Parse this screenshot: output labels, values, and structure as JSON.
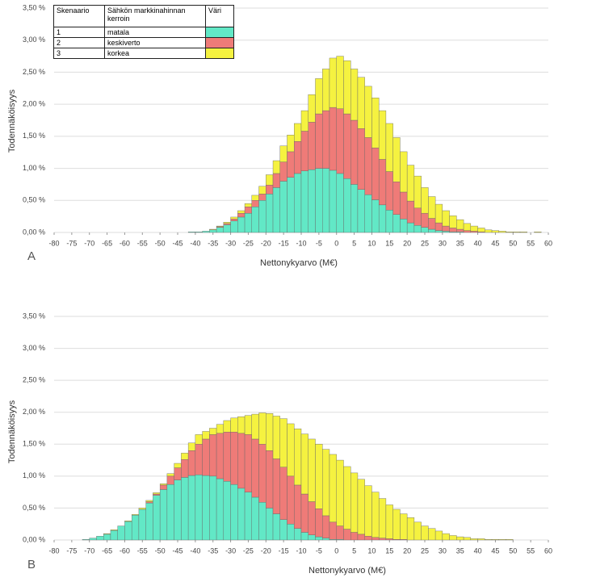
{
  "chart_data": [
    {
      "type": "histogram",
      "stacked": true,
      "panel": "A",
      "xlabel": "Nettonykyarvo (M€)",
      "ylabel": "Todennäköisyys",
      "legend_headers": [
        "Skenaario",
        "Sähkön markkinahinnan kerroin",
        "Väri"
      ],
      "legend": "upper left",
      "bins": [
        -42,
        -40,
        -38,
        -36,
        -34,
        -32,
        -30,
        -28,
        -26,
        -24,
        -22,
        -20,
        -18,
        -16,
        -14,
        -12,
        -10,
        -8,
        -6,
        -4,
        -2,
        0,
        2,
        4,
        6,
        8,
        10,
        12,
        14,
        16,
        18,
        20,
        22,
        24,
        26,
        28,
        30,
        32,
        34,
        36,
        38,
        40,
        42,
        44,
        46,
        48,
        50,
        52,
        54,
        56,
        58
      ],
      "series": [
        {
          "name": "matala",
          "scenario": "1",
          "color": "#62e8c6",
          "values": [
            0.01,
            0.01,
            0.02,
            0.04,
            0.08,
            0.12,
            0.18,
            0.24,
            0.3,
            0.4,
            0.5,
            0.6,
            0.7,
            0.8,
            0.86,
            0.92,
            0.96,
            0.98,
            1.0,
            1.0,
            0.97,
            0.92,
            0.84,
            0.75,
            0.67,
            0.59,
            0.51,
            0.43,
            0.35,
            0.28,
            0.21,
            0.15,
            0.11,
            0.08,
            0.05,
            0.03,
            0.02,
            0.01,
            0.01,
            0,
            0,
            0,
            0,
            0,
            0,
            0,
            0,
            0,
            0,
            0
          ]
        },
        {
          "name": "keskiverto",
          "scenario": "2",
          "color": "#ef7b78",
          "values": [
            0,
            0,
            0,
            0,
            0.01,
            0.02,
            0.03,
            0.06,
            0.1,
            0.1,
            0.1,
            0.14,
            0.22,
            0.3,
            0.4,
            0.5,
            0.62,
            0.74,
            0.85,
            0.9,
            0.98,
            1.01,
            1.01,
            1.0,
            0.95,
            0.89,
            0.81,
            0.71,
            0.6,
            0.51,
            0.42,
            0.34,
            0.27,
            0.22,
            0.17,
            0.12,
            0.08,
            0.06,
            0.04,
            0.03,
            0.02,
            0.01,
            0,
            0,
            0,
            0,
            0,
            0,
            0,
            0
          ]
        },
        {
          "name": "korkea",
          "scenario": "3",
          "color": "#f5f240",
          "values": [
            0,
            0,
            0,
            0.01,
            0.01,
            0.02,
            0.03,
            0.04,
            0.05,
            0.08,
            0.12,
            0.16,
            0.2,
            0.25,
            0.26,
            0.28,
            0.32,
            0.43,
            0.55,
            0.65,
            0.77,
            0.82,
            0.83,
            0.8,
            0.8,
            0.8,
            0.78,
            0.76,
            0.75,
            0.69,
            0.63,
            0.56,
            0.5,
            0.4,
            0.34,
            0.29,
            0.24,
            0.19,
            0.15,
            0.11,
            0.08,
            0.06,
            0.04,
            0.03,
            0.02,
            0.01,
            0.01,
            0.01,
            0,
            0.01
          ]
        }
      ],
      "xlim": [
        -80,
        60
      ],
      "xticks": [
        -80,
        -75,
        -70,
        -65,
        -60,
        -55,
        -50,
        -45,
        -40,
        -35,
        -30,
        -25,
        -20,
        -15,
        -10,
        -5,
        0,
        5,
        10,
        15,
        20,
        25,
        30,
        35,
        40,
        45,
        50,
        55,
        60
      ],
      "ylim": [
        0,
        3.5
      ],
      "yticks": [
        {
          "value": 0,
          "label": "0,00 %"
        },
        {
          "value": 0.5,
          "label": "0,50 %"
        },
        {
          "value": 1,
          "label": "1,00 %"
        },
        {
          "value": 1.5,
          "label": "1,50 %"
        },
        {
          "value": 2,
          "label": "2,00 %"
        },
        {
          "value": 2.5,
          "label": "2,50 %"
        },
        {
          "value": 3,
          "label": "3,00 %"
        },
        {
          "value": 3.5,
          "label": "3,50 %"
        }
      ],
      "grid": true
    },
    {
      "type": "histogram",
      "stacked": true,
      "panel": "B",
      "xlabel": "Nettonykyarvo (M€)",
      "ylabel": "Todennäköisyys",
      "bins": [
        -72,
        -70,
        -68,
        -66,
        -64,
        -62,
        -60,
        -58,
        -56,
        -54,
        -52,
        -50,
        -48,
        -46,
        -44,
        -42,
        -40,
        -38,
        -36,
        -34,
        -32,
        -30,
        -28,
        -26,
        -24,
        -22,
        -20,
        -18,
        -16,
        -14,
        -12,
        -10,
        -8,
        -6,
        -4,
        -2,
        0,
        2,
        4,
        6,
        8,
        10,
        12,
        14,
        16,
        18,
        20,
        22,
        24,
        26,
        28,
        30,
        32,
        34,
        36,
        38,
        40,
        42,
        44,
        46,
        48,
        50
      ],
      "series": [
        {
          "color": "#62e8c6",
          "values": [
            0.01,
            0.03,
            0.06,
            0.09,
            0.15,
            0.22,
            0.29,
            0.39,
            0.48,
            0.58,
            0.7,
            0.79,
            0.87,
            0.94,
            0.98,
            1.01,
            1.02,
            1.01,
            1.0,
            0.96,
            0.92,
            0.87,
            0.81,
            0.75,
            0.67,
            0.59,
            0.5,
            0.41,
            0.32,
            0.25,
            0.18,
            0.12,
            0.08,
            0.05,
            0.03,
            0.01,
            0.01,
            0,
            0,
            0,
            0,
            0,
            0,
            0,
            0,
            0,
            0,
            0,
            0,
            0,
            0,
            0,
            0,
            0,
            0,
            0,
            0,
            0,
            0,
            0,
            0
          ]
        },
        {
          "color": "#ef7b78",
          "values": [
            0,
            0,
            0,
            0,
            0,
            0,
            0,
            0,
            0,
            0.02,
            0.02,
            0.07,
            0.13,
            0.19,
            0.28,
            0.39,
            0.48,
            0.57,
            0.65,
            0.71,
            0.77,
            0.82,
            0.86,
            0.9,
            0.91,
            0.91,
            0.9,
            0.86,
            0.82,
            0.75,
            0.68,
            0.6,
            0.52,
            0.44,
            0.35,
            0.27,
            0.21,
            0.17,
            0.12,
            0.09,
            0.06,
            0.04,
            0.03,
            0.02,
            0.01,
            0.01,
            0,
            0,
            0,
            0,
            0,
            0,
            0,
            0,
            0,
            0,
            0,
            0,
            0,
            0,
            0
          ]
        },
        {
          "color": "#f5f240",
          "values": [
            0,
            0,
            0,
            0.01,
            0.01,
            0,
            0.01,
            0.01,
            0.02,
            0.02,
            0.02,
            0.02,
            0.04,
            0.07,
            0.1,
            0.12,
            0.15,
            0.12,
            0.1,
            0.14,
            0.18,
            0.22,
            0.26,
            0.3,
            0.39,
            0.49,
            0.58,
            0.67,
            0.76,
            0.82,
            0.88,
            0.94,
            0.98,
            1.01,
            1.04,
            1.06,
            1.03,
            0.98,
            0.93,
            0.86,
            0.79,
            0.71,
            0.62,
            0.53,
            0.47,
            0.4,
            0.35,
            0.28,
            0.22,
            0.18,
            0.14,
            0.1,
            0.07,
            0.05,
            0.04,
            0.02,
            0.02,
            0.01,
            0.01,
            0.01,
            0.01
          ]
        }
      ],
      "xlim": [
        -80,
        60
      ],
      "xticks": [
        -80,
        -75,
        -70,
        -65,
        -60,
        -55,
        -50,
        -45,
        -40,
        -35,
        -30,
        -25,
        -20,
        -15,
        -10,
        -5,
        0,
        5,
        10,
        15,
        20,
        25,
        30,
        35,
        40,
        45,
        50,
        55,
        60
      ],
      "ylim": [
        0,
        3.5
      ],
      "yticks": [
        {
          "value": 0,
          "label": "0,00 %"
        },
        {
          "value": 0.5,
          "label": "0,50 %"
        },
        {
          "value": 1,
          "label": "1,00 %"
        },
        {
          "value": 1.5,
          "label": "1,50 %"
        },
        {
          "value": 2,
          "label": "2,00 %"
        },
        {
          "value": 2.5,
          "label": "2,50 %"
        },
        {
          "value": 3,
          "label": "3,00 %"
        },
        {
          "value": 3.5,
          "label": "3,50 %"
        }
      ],
      "grid": true
    }
  ]
}
